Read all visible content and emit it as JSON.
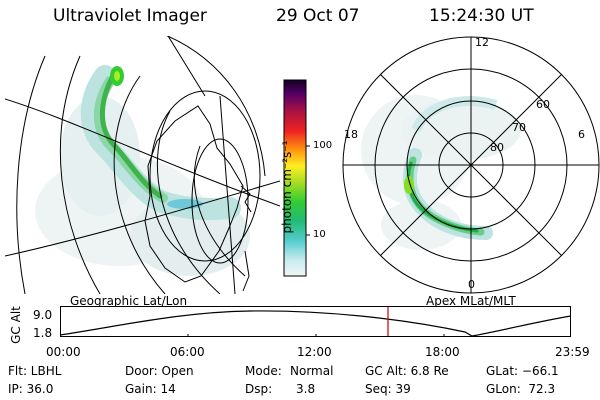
{
  "header": {
    "instrument": "Ultraviolet Imager",
    "date": "29 Oct 07",
    "time": "15:24:30 UT"
  },
  "left_panel": {
    "caption": "Geographic Lat/Lon"
  },
  "right_panel": {
    "caption": "Apex MLat/MLT",
    "mlt_labels": {
      "top": "12",
      "left": "18",
      "right": "6",
      "bottom": "0"
    },
    "lat_labels": [
      "60",
      "70",
      "80"
    ]
  },
  "colorbar": {
    "unit_label": "photon cm⁻²s⁻¹",
    "ticks": [
      "100",
      "10"
    ],
    "scale": "log"
  },
  "altitude_plot": {
    "ylabel": "GC Alt",
    "yticks": [
      "9.0",
      "1.8"
    ],
    "xticks": [
      "00:00",
      "06:00",
      "12:00",
      "18:00",
      "23:59"
    ],
    "current_time_marker_color": "#cc0000"
  },
  "status": {
    "flt": "Flt: LBHL",
    "ip": "IP: 36.0",
    "door": "Door: Open",
    "gain": "Gain: 14",
    "mode_label": "Mode:",
    "mode_value": "Normal",
    "dsp_label": "Dsp:",
    "dsp_value": "3.8",
    "gc_alt": "GC Alt: 6.8 Re",
    "seq": "Seq: 39",
    "glat": "GLat: −66.1",
    "glon": "GLon:  72.3"
  }
}
